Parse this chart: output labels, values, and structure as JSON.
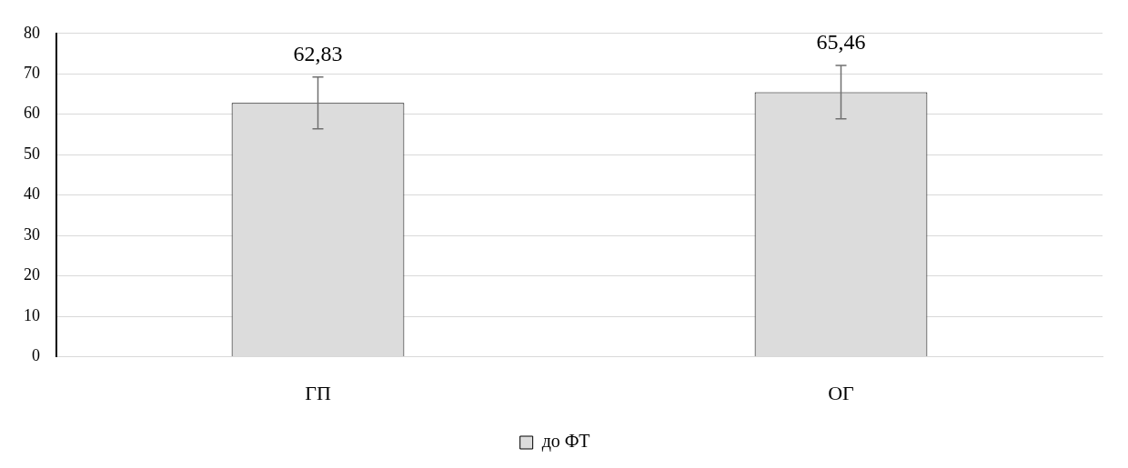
{
  "chart_data": {
    "type": "bar",
    "categories": [
      "ГП",
      "ОГ"
    ],
    "series": [
      {
        "name": "до ФТ",
        "color": "#dcdcdc",
        "values": [
          62.83,
          65.46
        ],
        "errors": [
          6.4,
          6.6
        ],
        "value_labels": [
          "62,83",
          "65,46"
        ]
      }
    ],
    "ylim": [
      0,
      80
    ],
    "yticks": [
      0,
      10,
      20,
      30,
      40,
      50,
      60,
      70,
      80
    ],
    "grid": "y",
    "legend": "bottom"
  }
}
